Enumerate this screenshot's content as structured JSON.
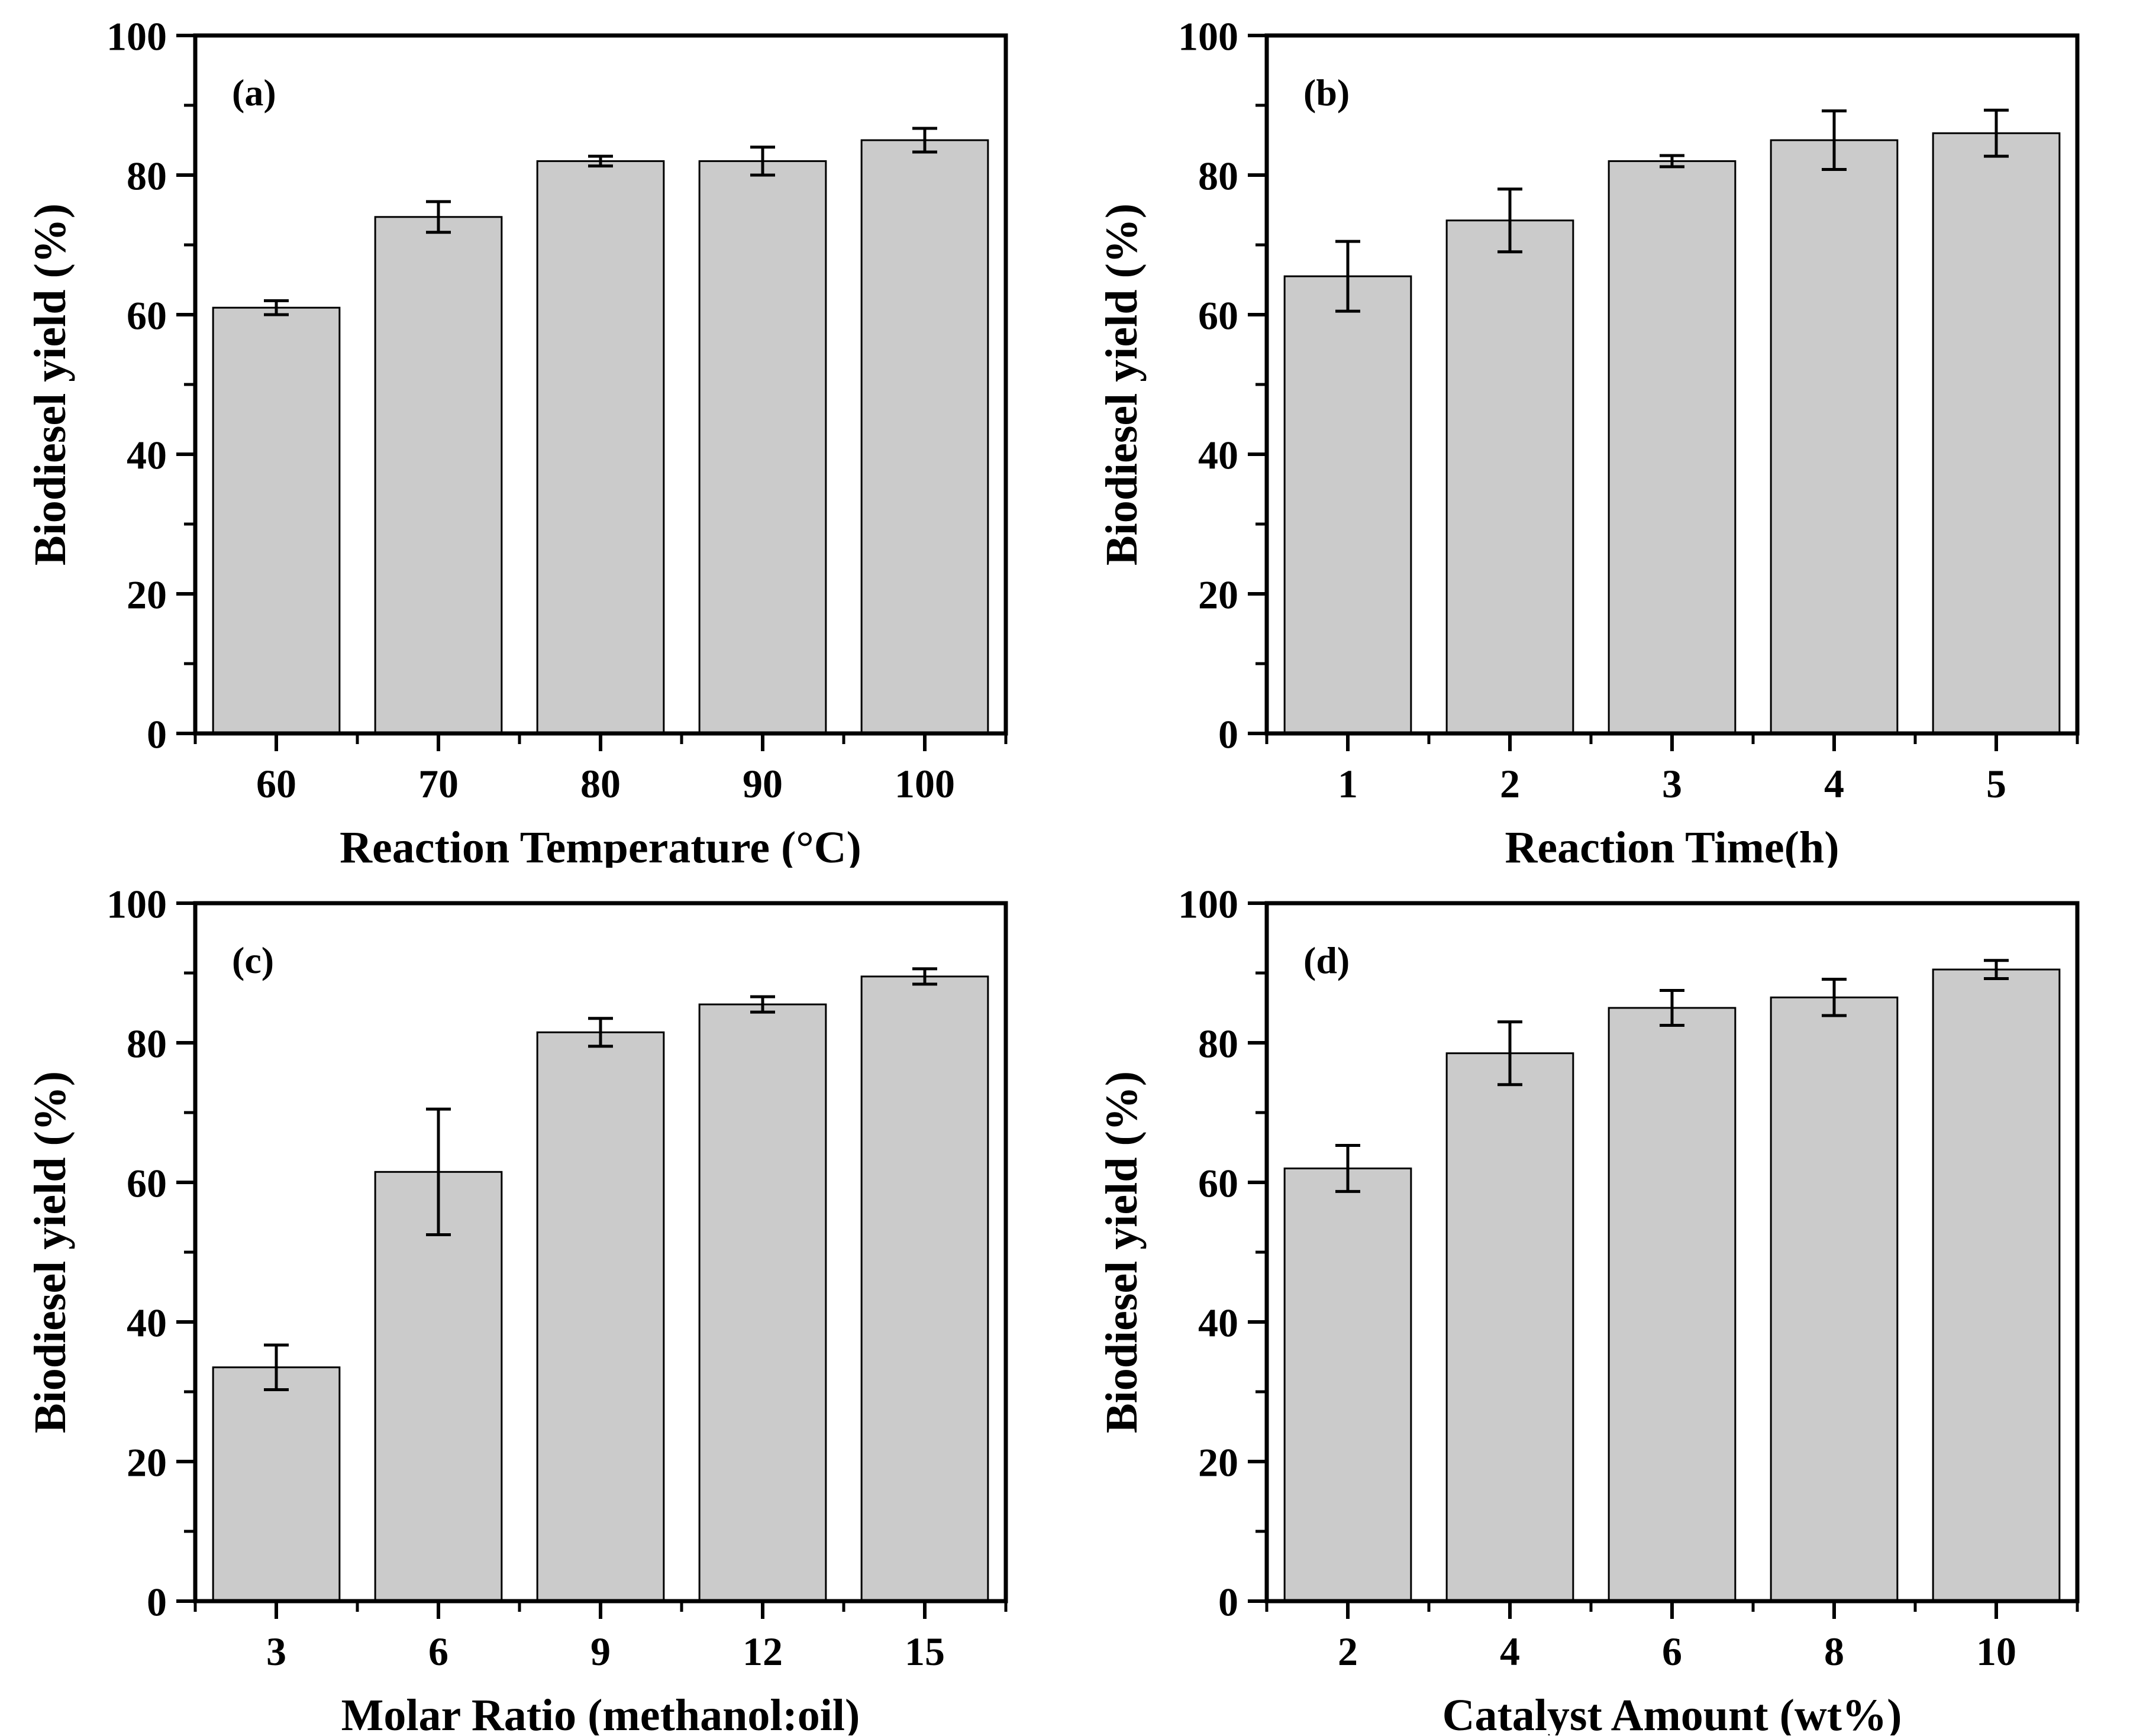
{
  "figure": {
    "background": "#ffffff",
    "bar_fill": "#cbcbcb",
    "bar_edge": "#000000",
    "axis_color": "#000000"
  },
  "chart_data": [
    {
      "type": "bar",
      "panel_label": "(a)",
      "categories": [
        "60",
        "70",
        "80",
        "90",
        "100"
      ],
      "values": [
        61,
        74,
        82,
        82,
        85
      ],
      "errors": [
        1,
        2.2,
        0.7,
        2,
        1.7
      ],
      "title": "",
      "xlabel": "Reaction Temperature (°C)",
      "ylabel": "Biodiesel yield (%)",
      "ylim": [
        0,
        100
      ],
      "yticks": [
        0,
        20,
        40,
        60,
        80,
        100
      ],
      "yminor": [
        10,
        30,
        50,
        70,
        90
      ],
      "grid": "off",
      "legend": "none"
    },
    {
      "type": "bar",
      "panel_label": "(b)",
      "categories": [
        "1",
        "2",
        "3",
        "4",
        "5"
      ],
      "values": [
        65.5,
        73.5,
        82,
        85,
        86
      ],
      "errors": [
        5,
        4.5,
        0.8,
        4.2,
        3.3
      ],
      "title": "",
      "xlabel": "Reaction Time(h)",
      "ylabel": "Biodiesel yield (%)",
      "ylim": [
        0,
        100
      ],
      "yticks": [
        0,
        20,
        40,
        60,
        80,
        100
      ],
      "yminor": [
        10,
        30,
        50,
        70,
        90
      ],
      "grid": "off",
      "legend": "none"
    },
    {
      "type": "bar",
      "panel_label": "(c)",
      "categories": [
        "3",
        "6",
        "9",
        "12",
        "15"
      ],
      "values": [
        33.5,
        61.5,
        81.5,
        85.5,
        89.5
      ],
      "errors": [
        3.2,
        9,
        2,
        1.1,
        1.1
      ],
      "title": "",
      "xlabel": "Molar Ratio (methanol:oil)",
      "ylabel": "Biodiesel yield (%)",
      "ylim": [
        0,
        100
      ],
      "yticks": [
        0,
        20,
        40,
        60,
        80,
        100
      ],
      "yminor": [
        10,
        30,
        50,
        70,
        90
      ],
      "grid": "off",
      "legend": "none"
    },
    {
      "type": "bar",
      "panel_label": "(d)",
      "categories": [
        "2",
        "4",
        "6",
        "8",
        "10"
      ],
      "values": [
        62,
        78.5,
        85,
        86.5,
        90.5
      ],
      "errors": [
        3.3,
        4.5,
        2.5,
        2.6,
        1.3
      ],
      "title": "",
      "xlabel": "Catalyst Amount (wt%)",
      "ylabel": "Biodiesel yield (%)",
      "ylim": [
        0,
        100
      ],
      "yticks": [
        0,
        20,
        40,
        60,
        80,
        100
      ],
      "yminor": [
        10,
        30,
        50,
        70,
        90
      ],
      "grid": "off",
      "legend": "none"
    }
  ]
}
